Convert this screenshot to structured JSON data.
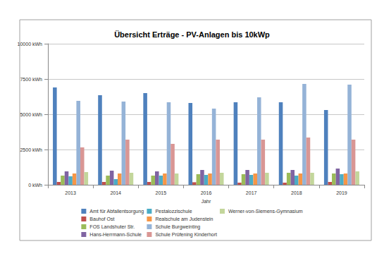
{
  "chart_data": {
    "type": "bar",
    "title": "Übersicht Erträge - PV-Anlagen bis 10kWp",
    "x_label": "Jahr",
    "categories": [
      "2013",
      "2014",
      "2015",
      "2016",
      "2017",
      "2018",
      "2019"
    ],
    "series": [
      {
        "name": "Amt für Abfallentsorgung",
        "color": "#4f81bd",
        "values": [
          6900,
          6350,
          6500,
          5800,
          5850,
          5850,
          5300
        ]
      },
      {
        "name": "Bauhof Ost",
        "color": "#c0504d",
        "values": [
          200,
          200,
          200,
          180,
          150,
          150,
          200
        ]
      },
      {
        "name": "FOS Landshuter Str.",
        "color": "#9bbb59",
        "values": [
          650,
          650,
          650,
          750,
          750,
          850,
          800
        ]
      },
      {
        "name": "Hans-Herrmann-Schule",
        "color": "#8064a2",
        "values": [
          950,
          1000,
          950,
          1050,
          1050,
          1050,
          1150
        ]
      },
      {
        "name": "Pestalozzischule",
        "color": "#4bacc6",
        "values": [
          600,
          400,
          650,
          700,
          700,
          650,
          750
        ]
      },
      {
        "name": "Realschule am Judenstein",
        "color": "#f79646",
        "values": [
          800,
          800,
          800,
          800,
          800,
          800,
          800
        ]
      },
      {
        "name": "Schule Burgweinting",
        "color": "#95b3d7",
        "values": [
          5950,
          5900,
          5850,
          5400,
          6200,
          7150,
          7100
        ]
      },
      {
        "name": "Schule Prüfening Kinderhort",
        "color": "#d99694",
        "values": [
          2650,
          3200,
          2900,
          3200,
          3200,
          3350,
          3200
        ]
      },
      {
        "name": "Werner-von-Siemens-Gymnasium",
        "color": "#c3d69b",
        "values": [
          900,
          850,
          800,
          850,
          850,
          850,
          950
        ]
      }
    ],
    "ylim": [
      0,
      10000
    ],
    "yticks": [
      {
        "value": 0,
        "label": "0 kWh"
      },
      {
        "value": 2500,
        "label": "2500 kWh"
      },
      {
        "value": 5000,
        "label": "5000 kWh"
      },
      {
        "value": 7500,
        "label": "7500 kWh"
      },
      {
        "value": 10000,
        "label": "10000 kWh"
      }
    ],
    "grid": true,
    "legend": "bottom"
  }
}
